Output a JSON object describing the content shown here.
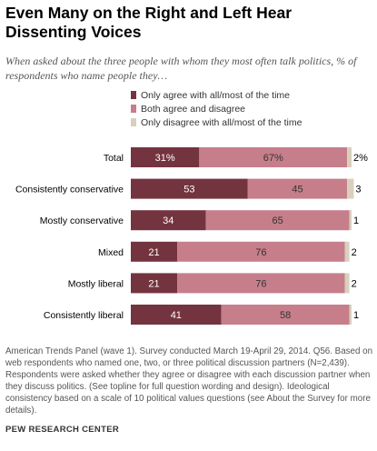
{
  "title": "Even Many on the Right and Left Hear Dissenting Voices",
  "subtitle": "When asked about the three people with whom they most often talk politics, % of respondents who name people they…",
  "legend": [
    {
      "label": "Only agree with all/most of the time",
      "color": "#74343f"
    },
    {
      "label": "Both agree and disagree",
      "color": "#c67e8b"
    },
    {
      "label": "Only disagree with all/most of the time",
      "color": "#d8d0bd"
    }
  ],
  "footnote": "American Trends Panel (wave 1). Survey conducted March 19-April 29, 2014. Q56. Based on web respondents who named one, two, or three political discussion partners (N=2,439). Respondents were asked whether they agree or disagree with each discussion partner when they discuss politics. (See topline for full question wording and design). Ideological consistency based on a scale of 10 political values questions (see About the Survey for more details).",
  "source": "PEW RESEARCH CENTER",
  "chart_data": {
    "type": "bar",
    "orientation": "horizontal",
    "stacked": true,
    "categories": [
      "Total",
      "Consistently conservative",
      "Mostly conservative",
      "Mixed",
      "Mostly liberal",
      "Consistently liberal"
    ],
    "series": [
      {
        "name": "Only agree with all/most of the time",
        "color": "#74343f",
        "values": [
          31,
          53,
          34,
          21,
          21,
          41
        ],
        "labels": [
          "31%",
          "53",
          "34",
          "21",
          "21",
          "41"
        ]
      },
      {
        "name": "Both agree and disagree",
        "color": "#c67e8b",
        "values": [
          67,
          45,
          65,
          76,
          76,
          58
        ],
        "labels": [
          "67%",
          "45",
          "65",
          "76",
          "76",
          "58"
        ]
      },
      {
        "name": "Only disagree with all/most of the time",
        "color": "#d8d0bd",
        "values": [
          2,
          3,
          1,
          2,
          2,
          1
        ],
        "labels": [
          "2%",
          "3",
          "1",
          "2",
          "2",
          "1"
        ]
      }
    ],
    "xlim": [
      0,
      100
    ],
    "grid": false,
    "legend_position": "top"
  }
}
